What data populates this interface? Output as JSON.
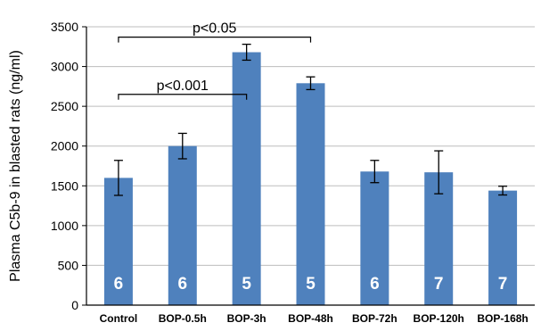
{
  "chart_data": {
    "type": "bar",
    "title": "",
    "xlabel": "",
    "ylabel": "Plasma C5b-9 in blasted rats (ng/ml)",
    "ylim": [
      0,
      3500
    ],
    "yticks": [
      0,
      500,
      1000,
      1500,
      2000,
      2500,
      3000,
      3500
    ],
    "grid": true,
    "categories": [
      "Control",
      "BOP-0.5h",
      "BOP-3h",
      "BOP-48h",
      "BOP-72h",
      "BOP-120h",
      "BOP-168h"
    ],
    "values": [
      1600,
      2000,
      3180,
      2790,
      1680,
      1670,
      1440
    ],
    "errors": [
      220,
      160,
      100,
      80,
      140,
      270,
      55
    ],
    "n_labels": [
      "6",
      "6",
      "5",
      "5",
      "6",
      "7",
      "7"
    ],
    "bar_color": "#4f81bd",
    "annotations": [
      {
        "text": "p<0.001",
        "from": "Control",
        "to": "BOP-3h",
        "level": 2650
      },
      {
        "text": "p<0.05",
        "from": "Control",
        "to": "BOP-48h",
        "level": 3370
      }
    ]
  }
}
